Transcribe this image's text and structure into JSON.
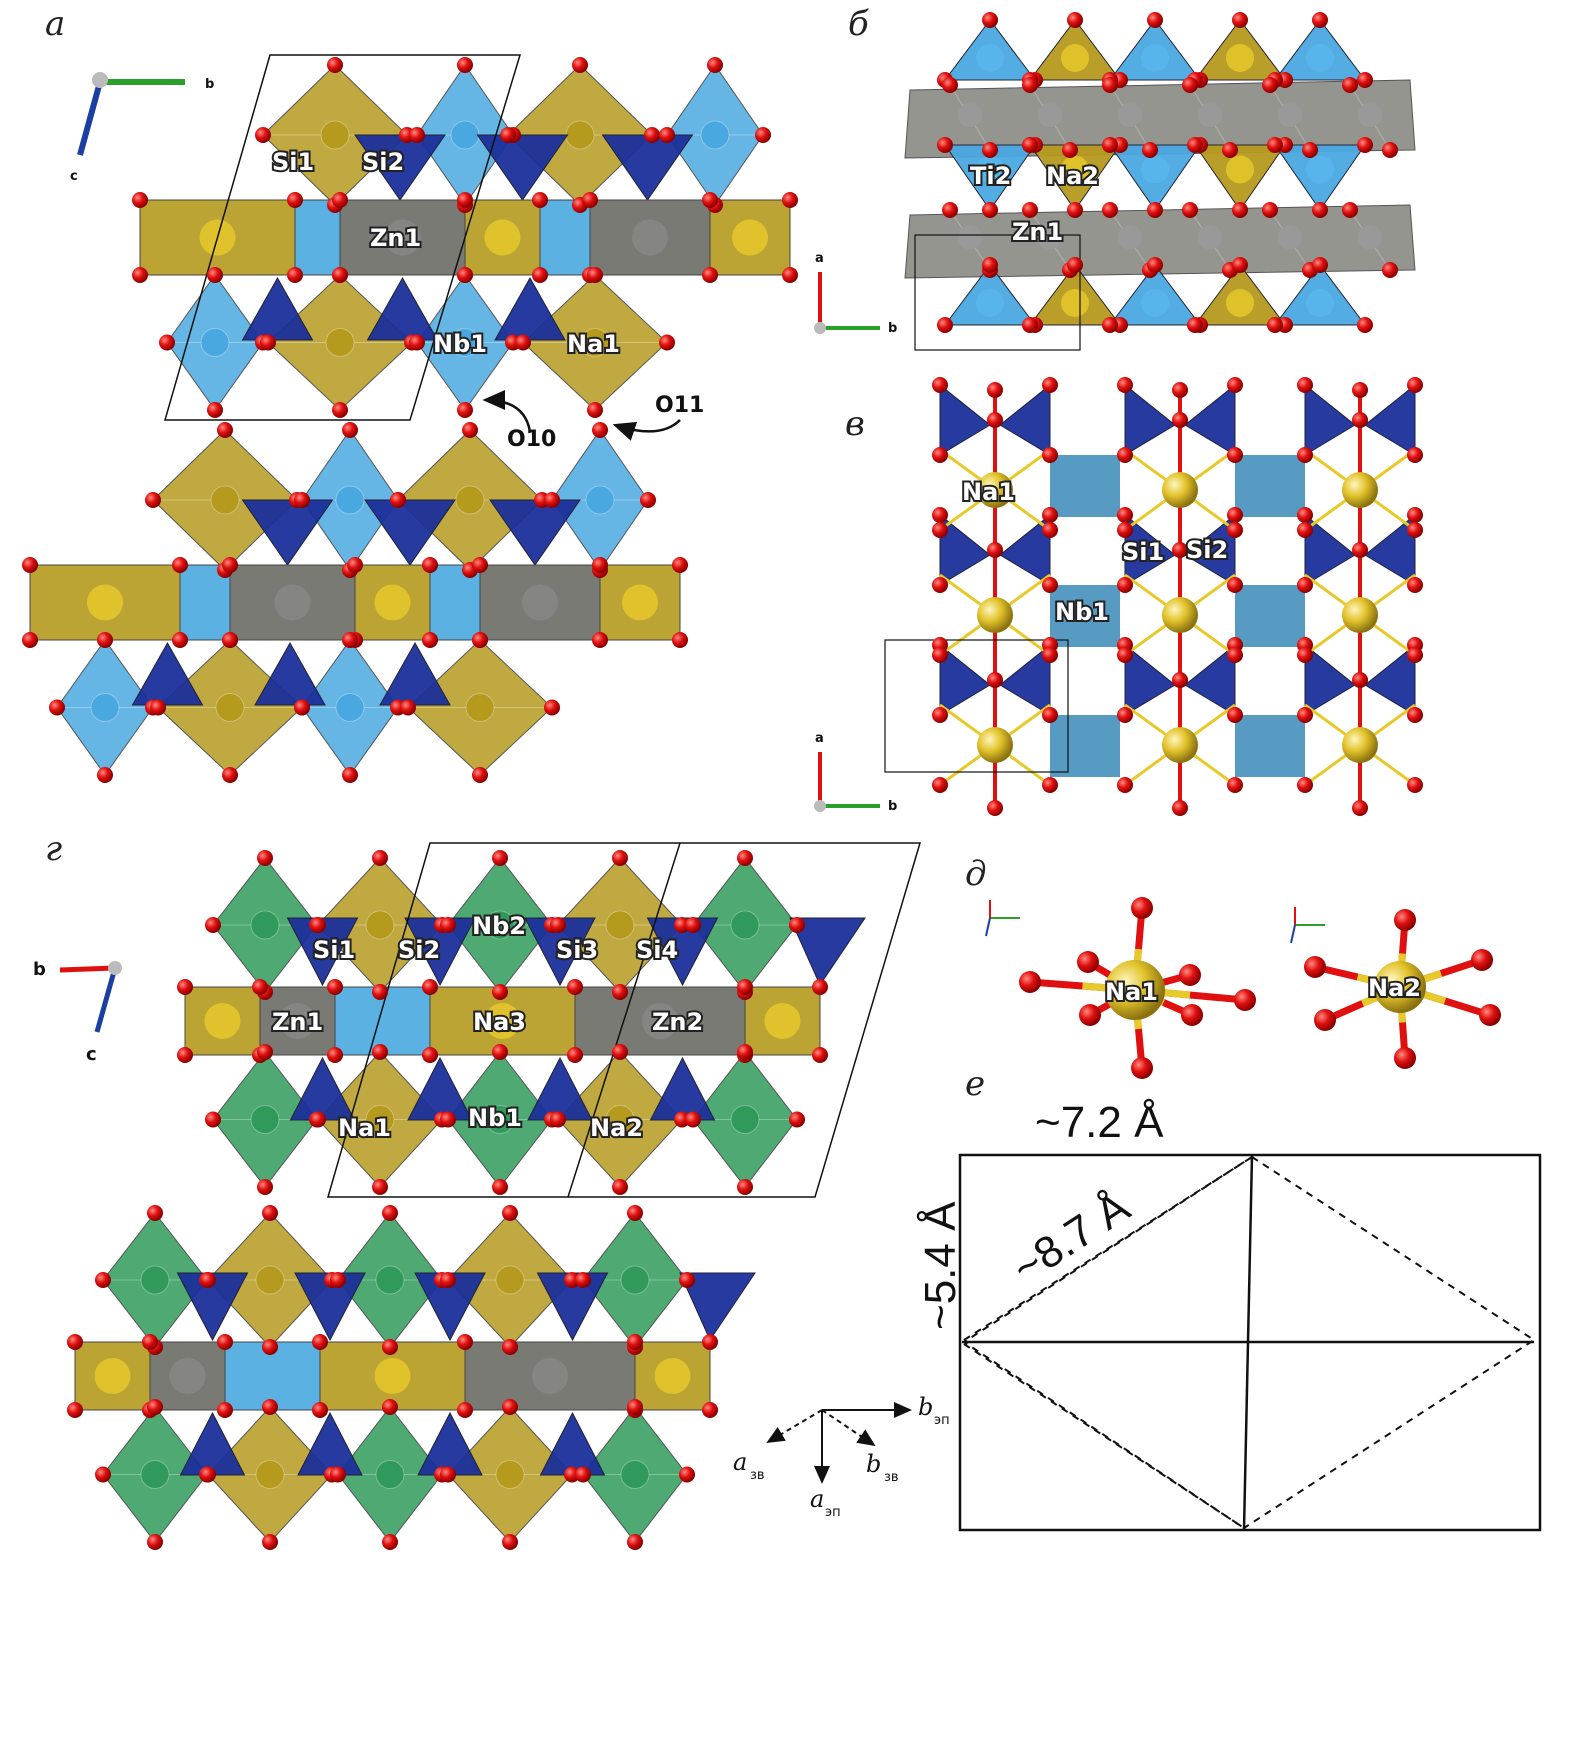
{
  "panels": {
    "a": {
      "letter": "а",
      "labels": {
        "si1": "Si1",
        "si2": "Si2",
        "zn1": "Zn1",
        "nb1": "Nb1",
        "na1": "Na1",
        "o10": "O10",
        "o11": "O11"
      },
      "axes": {
        "b": "b",
        "c": "c"
      }
    },
    "b": {
      "letter": "б",
      "labels": {
        "ti2": "Ti2",
        "na2": "Na2",
        "zn1": "Zn1"
      },
      "axes": {
        "a": "a",
        "b": "b"
      }
    },
    "v": {
      "letter": "в",
      "labels": {
        "na1": "Na1",
        "si1": "Si1",
        "si2": "Si2",
        "nb1": "Nb1"
      },
      "axes": {
        "a": "a",
        "b": "b"
      }
    },
    "g": {
      "letter": "г",
      "labels": {
        "si1": "Si1",
        "si2": "Si2",
        "nb2": "Nb2",
        "si3": "Si3",
        "si4": "Si4",
        "zn1": "Zn1",
        "na3": "Na3",
        "zn2": "Zn2",
        "na1": "Na1",
        "nb1": "Nb1",
        "na2": "Na2"
      },
      "axes": {
        "b": "b",
        "c": "c"
      }
    },
    "d": {
      "letter": "д",
      "labels": {
        "na1": "Na1",
        "na2": "Na2"
      }
    },
    "e": {
      "letter": "е",
      "dims": {
        "width": "~7.2 Å",
        "height": "~5.4 Å",
        "diagonal": "~8.7 Å"
      },
      "vectors": {
        "b_ep": "b",
        "b_ep_sub": "эп",
        "a_ep": "a",
        "a_ep_sub": "эп",
        "a_zv": "a",
        "a_zv_sub": "зв",
        "b_zv": "b",
        "b_zv_sub": "зв"
      }
    }
  },
  "colors": {
    "oxygen": "#e01010",
    "nb_octahedron": "#4aa8e0",
    "na_polyhedron": "#b59a1e",
    "na_bright": "#e8c92a",
    "zn_polyhedron": "#6b6b66",
    "si_tetrahedron": "#1a2f9a",
    "nb_green": "#2f9a5a",
    "ti_gray": "#8a8a84"
  }
}
